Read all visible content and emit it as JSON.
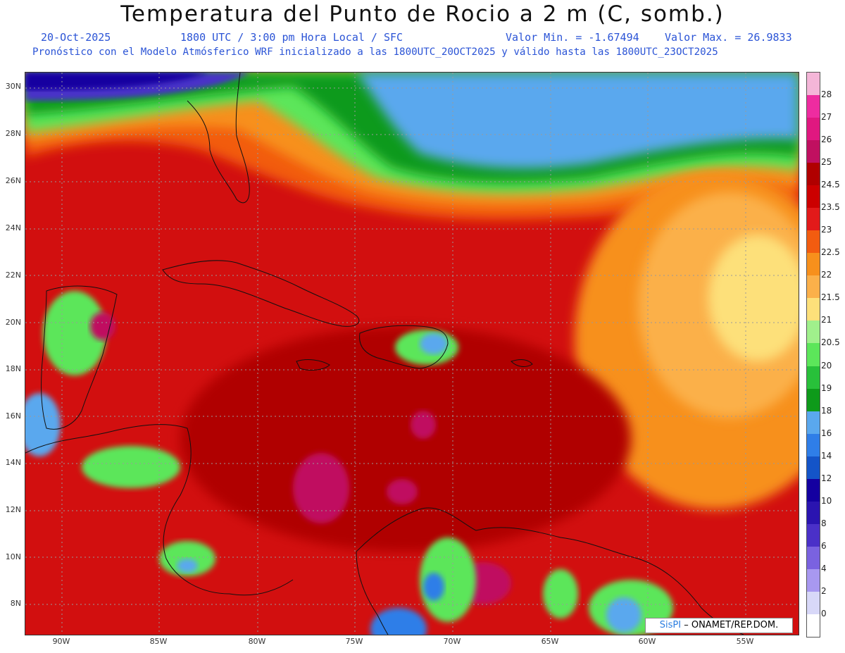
{
  "header": {
    "title": "Temperatura del Punto de Rocio a 2 m (C, somb.)",
    "date": "20-Oct-2025",
    "time_info": "1800 UTC / 3:00 pm Hora Local / SFC",
    "value_min": "Valor Min. = -1.67494",
    "value_max": "Valor Max. = 26.9833",
    "forecast_info": "Pronóstico con el Modelo Atmósferico WRF inicializado a las 1800UTC_20OCT2025 y válido hasta las  1800UTC_23OCT2025"
  },
  "map": {
    "lat_labels": [
      "30N",
      "28N",
      "26N",
      "24N",
      "22N",
      "20N",
      "18N",
      "16N",
      "14N",
      "12N",
      "10N",
      "8N"
    ],
    "lon_labels": [
      "90W",
      "85W",
      "80W",
      "75W",
      "70W",
      "65W",
      "60W",
      "55W"
    ]
  },
  "legend": {
    "labels": [
      "28",
      "27",
      "26",
      "25",
      "24.5",
      "23.5",
      "23",
      "22.5",
      "22",
      "21.5",
      "21",
      "20.5",
      "20",
      "19",
      "18",
      "16",
      "14",
      "12",
      "10",
      "8",
      "6",
      "4",
      "2",
      "0"
    ],
    "colors": [
      "#f4b6d8",
      "#ee2ca0",
      "#e01880",
      "#c01060",
      "#b00000",
      "#cc0000",
      "#e21a1a",
      "#f25c10",
      "#f7901c",
      "#fbb04a",
      "#fde07a",
      "#a0f08c",
      "#5ce65a",
      "#28c03a",
      "#0e9a1a",
      "#5aa8ee",
      "#2f7ee8",
      "#1454c8",
      "#1400a0",
      "#2a14b0",
      "#4a30c8",
      "#7a62e0",
      "#a898f0",
      "#d8d8f8",
      "#ffffff"
    ]
  },
  "credit": {
    "brand": "SisPI",
    "text": " – ONAMET/REP.DOM."
  }
}
